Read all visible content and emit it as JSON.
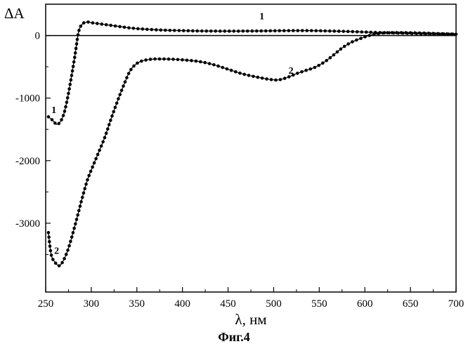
{
  "chart_data": {
    "type": "line",
    "caption": "Фиг.4",
    "xlabel": "λ, нм",
    "ylabel": "ΔA",
    "xlim": [
      250,
      700
    ],
    "ylim": [
      -4100,
      500
    ],
    "x_ticks": [
      "250",
      "300",
      "350",
      "400",
      "450",
      "500",
      "550",
      "600",
      "650",
      "700"
    ],
    "y_ticks": [
      "0",
      "-1000",
      "-2000",
      "-3000"
    ],
    "grid": false,
    "zero_line": true,
    "series": [
      {
        "name": "1",
        "label_positions": [
          [
            487,
            260
          ],
          [
            259,
            -1240
          ]
        ],
        "points": [
          [
            253,
            -1300
          ],
          [
            258,
            -1360
          ],
          [
            262,
            -1420
          ],
          [
            266,
            -1380
          ],
          [
            270,
            -1250
          ],
          [
            274,
            -1000
          ],
          [
            278,
            -680
          ],
          [
            282,
            -330
          ],
          [
            286,
            50
          ],
          [
            290,
            180
          ],
          [
            295,
            215
          ],
          [
            300,
            205
          ],
          [
            310,
            185
          ],
          [
            320,
            165
          ],
          [
            330,
            145
          ],
          [
            340,
            125
          ],
          [
            350,
            110
          ],
          [
            360,
            100
          ],
          [
            380,
            85
          ],
          [
            400,
            78
          ],
          [
            420,
            72
          ],
          [
            440,
            70
          ],
          [
            460,
            70
          ],
          [
            480,
            72
          ],
          [
            500,
            75
          ],
          [
            520,
            78
          ],
          [
            540,
            78
          ],
          [
            560,
            72
          ],
          [
            580,
            65
          ],
          [
            600,
            55
          ],
          [
            620,
            45
          ],
          [
            640,
            38
          ],
          [
            660,
            30
          ],
          [
            680,
            25
          ],
          [
            700,
            20
          ]
        ]
      },
      {
        "name": "2",
        "label_positions": [
          [
            519,
            -610
          ],
          [
            262,
            -3490
          ]
        ],
        "points": [
          [
            253,
            -3150
          ],
          [
            256,
            -3500
          ],
          [
            260,
            -3620
          ],
          [
            265,
            -3680
          ],
          [
            270,
            -3580
          ],
          [
            275,
            -3400
          ],
          [
            280,
            -3150
          ],
          [
            285,
            -2880
          ],
          [
            290,
            -2600
          ],
          [
            296,
            -2300
          ],
          [
            302,
            -2080
          ],
          [
            308,
            -1870
          ],
          [
            315,
            -1620
          ],
          [
            322,
            -1320
          ],
          [
            330,
            -1000
          ],
          [
            336,
            -780
          ],
          [
            342,
            -580
          ],
          [
            348,
            -470
          ],
          [
            355,
            -410
          ],
          [
            365,
            -380
          ],
          [
            375,
            -375
          ],
          [
            390,
            -380
          ],
          [
            405,
            -395
          ],
          [
            420,
            -420
          ],
          [
            435,
            -470
          ],
          [
            450,
            -540
          ],
          [
            465,
            -610
          ],
          [
            480,
            -660
          ],
          [
            495,
            -700
          ],
          [
            505,
            -710
          ],
          [
            515,
            -670
          ],
          [
            525,
            -610
          ],
          [
            535,
            -560
          ],
          [
            545,
            -510
          ],
          [
            555,
            -430
          ],
          [
            565,
            -320
          ],
          [
            575,
            -200
          ],
          [
            585,
            -110
          ],
          [
            595,
            -50
          ],
          [
            605,
            0
          ],
          [
            620,
            40
          ],
          [
            640,
            45
          ],
          [
            660,
            40
          ],
          [
            680,
            30
          ],
          [
            700,
            20
          ]
        ]
      }
    ]
  }
}
